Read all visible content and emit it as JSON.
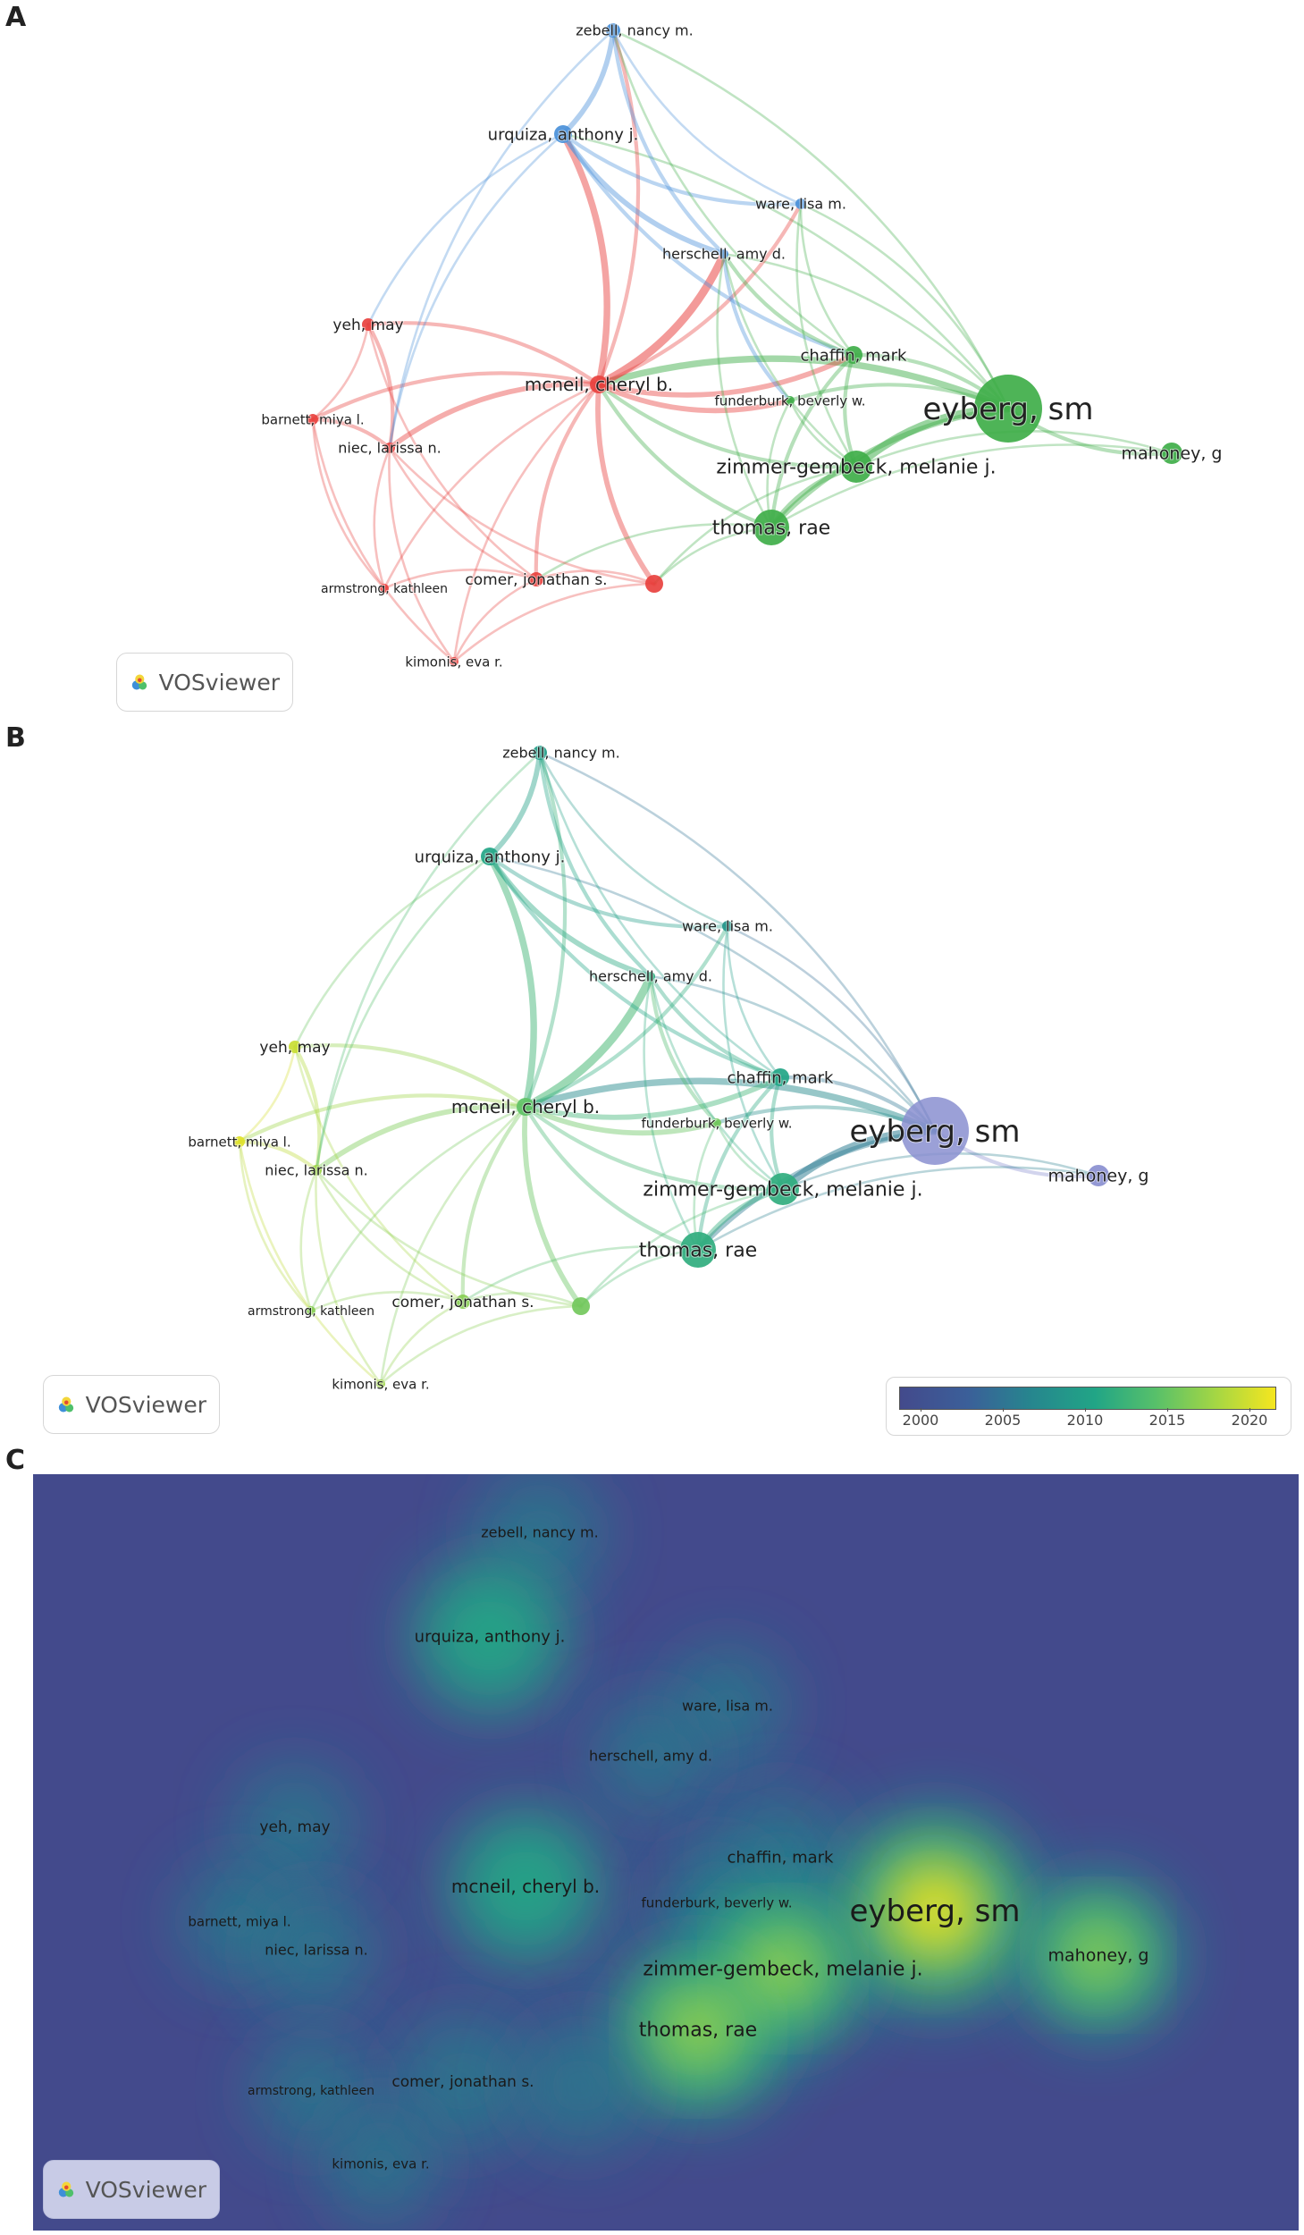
{
  "panels": {
    "a_label": "A",
    "b_label": "B",
    "c_label": "C"
  },
  "badge": {
    "text": "VOSviewer"
  },
  "colorbar": {
    "ticks": [
      "2000",
      "2005",
      "2010",
      "2015",
      "2020"
    ],
    "range": [
      1998,
      2021
    ]
  },
  "colors": {
    "cluster_red": "#e8413e",
    "cluster_green": "#3fae49",
    "cluster_blue": "#4a90d9",
    "overlay_purple": "#8a8fd0",
    "density_bg": "#434a8c"
  },
  "nodes": [
    {
      "id": "zebell",
      "label": "zebell, nancy m.",
      "cluster": "blue",
      "year": 2009,
      "weight": 0.35
    },
    {
      "id": "urquiza",
      "label": "urquiza, anthony j.",
      "cluster": "blue",
      "year": 2010,
      "weight": 0.55
    },
    {
      "id": "ware",
      "label": "ware, lisa m.",
      "cluster": "blue",
      "year": 2008,
      "weight": 0.28
    },
    {
      "id": "herschell",
      "label": "herschell, amy d.",
      "cluster": "blue",
      "year": 2011,
      "weight": 0.25
    },
    {
      "id": "yeh",
      "label": "yeh, may",
      "cluster": "red",
      "year": 2019,
      "weight": 0.3
    },
    {
      "id": "mcneil",
      "label": "mcneil, cheryl b.",
      "cluster": "red",
      "year": 2014,
      "weight": 0.55
    },
    {
      "id": "barnett",
      "label": "barnett, miya l.",
      "cluster": "red",
      "year": 2020,
      "weight": 0.28
    },
    {
      "id": "niec",
      "label": "niec, larissa n.",
      "cluster": "red",
      "year": 2017,
      "weight": 0.3
    },
    {
      "id": "chaffin",
      "label": "chaffin, mark",
      "cluster": "green",
      "year": 2010,
      "weight": 0.4
    },
    {
      "id": "funderburk",
      "label": "funderburk, beverly w.",
      "cluster": "green",
      "year": 2015,
      "weight": 0.25
    },
    {
      "id": "eyberg",
      "label": "eyberg, sm",
      "cluster": "green",
      "year": 1999,
      "weight": 1.0
    },
    {
      "id": "mahoney",
      "label": "mahoney, g",
      "cluster": "green",
      "year": 2000,
      "weight": 0.6
    },
    {
      "id": "zimmer",
      "label": "zimmer-gembeck, melanie j.",
      "cluster": "green",
      "year": 2011,
      "weight": 0.7
    },
    {
      "id": "thomas",
      "label": "thomas, rae",
      "cluster": "green",
      "year": 2011,
      "weight": 0.75
    },
    {
      "id": "comer",
      "label": "comer, jonathan s.",
      "cluster": "red",
      "year": 2016,
      "weight": 0.45
    },
    {
      "id": "unlabeled",
      "label": "",
      "cluster": "red",
      "year": 2015,
      "weight": 0.4
    },
    {
      "id": "armstrong",
      "label": "armstrong, kathleen",
      "cluster": "red",
      "year": 2016,
      "weight": 0.25
    },
    {
      "id": "kimonis",
      "label": "kimonis, eva r.",
      "cluster": "red",
      "year": 2017,
      "weight": 0.25
    }
  ],
  "links": [
    [
      "eyberg",
      "zimmer",
      5
    ],
    [
      "eyberg",
      "thomas",
      3
    ],
    [
      "eyberg",
      "chaffin",
      2
    ],
    [
      "eyberg",
      "mcneil",
      4
    ],
    [
      "eyberg",
      "mahoney",
      2
    ],
    [
      "eyberg",
      "funderburk",
      2
    ],
    [
      "eyberg",
      "ware",
      1
    ],
    [
      "eyberg",
      "herschell",
      1
    ],
    [
      "eyberg",
      "urquiza",
      1
    ],
    [
      "eyberg",
      "zebell",
      1
    ],
    [
      "mcneil",
      "urquiza",
      4
    ],
    [
      "mcneil",
      "herschell",
      5
    ],
    [
      "mcneil",
      "zebell",
      2
    ],
    [
      "mcneil",
      "niec",
      3
    ],
    [
      "mcneil",
      "barnett",
      2
    ],
    [
      "mcneil",
      "yeh",
      2
    ],
    [
      "mcneil",
      "comer",
      2
    ],
    [
      "mcneil",
      "unlabeled",
      3
    ],
    [
      "mcneil",
      "thomas",
      2
    ],
    [
      "mcneil",
      "zimmer",
      2
    ],
    [
      "mcneil",
      "chaffin",
      3
    ],
    [
      "mcneil",
      "funderburk",
      3
    ],
    [
      "mcneil",
      "kimonis",
      1
    ],
    [
      "mcneil",
      "armstrong",
      1
    ],
    [
      "mcneil",
      "ware",
      2
    ],
    [
      "urquiza",
      "zebell",
      3
    ],
    [
      "urquiza",
      "herschell",
      3
    ],
    [
      "urquiza",
      "ware",
      2
    ],
    [
      "urquiza",
      "chaffin",
      2
    ],
    [
      "urquiza",
      "niec",
      1
    ],
    [
      "zebell",
      "ware",
      1
    ],
    [
      "zebell",
      "herschell",
      2
    ],
    [
      "zebell",
      "chaffin",
      1
    ],
    [
      "ware",
      "chaffin",
      1
    ],
    [
      "herschell",
      "chaffin",
      2
    ],
    [
      "herschell",
      "funderburk",
      2
    ],
    [
      "herschell",
      "zimmer",
      1
    ],
    [
      "chaffin",
      "zimmer",
      2
    ],
    [
      "chaffin",
      "thomas",
      2
    ],
    [
      "funderburk",
      "thomas",
      1
    ],
    [
      "funderburk",
      "zimmer",
      1
    ],
    [
      "zimmer",
      "thomas",
      3
    ],
    [
      "thomas",
      "unlabeled",
      1
    ],
    [
      "thomas",
      "comer",
      1
    ],
    [
      "zimmer",
      "unlabeled",
      1
    ],
    [
      "niec",
      "barnett",
      2
    ],
    [
      "niec",
      "yeh",
      2
    ],
    [
      "niec",
      "comer",
      1
    ],
    [
      "niec",
      "armstrong",
      1
    ],
    [
      "niec",
      "kimonis",
      1
    ],
    [
      "barnett",
      "yeh",
      1
    ],
    [
      "barnett",
      "kimonis",
      1
    ],
    [
      "barnett",
      "armstrong",
      1
    ],
    [
      "comer",
      "kimonis",
      1
    ],
    [
      "comer",
      "armstrong",
      1
    ],
    [
      "unlabeled",
      "kimonis",
      1
    ],
    [
      "unlabeled",
      "comer",
      1
    ],
    [
      "yeh",
      "comer",
      1
    ],
    [
      "niec",
      "unlabeled",
      1
    ],
    [
      "mahoney",
      "zimmer",
      1
    ],
    [
      "mahoney",
      "thomas",
      1
    ],
    [
      "urquiza",
      "yeh",
      1
    ],
    [
      "zebell",
      "niec",
      1
    ],
    [
      "ware",
      "zimmer",
      1
    ],
    [
      "herschell",
      "thomas",
      1
    ]
  ]
}
